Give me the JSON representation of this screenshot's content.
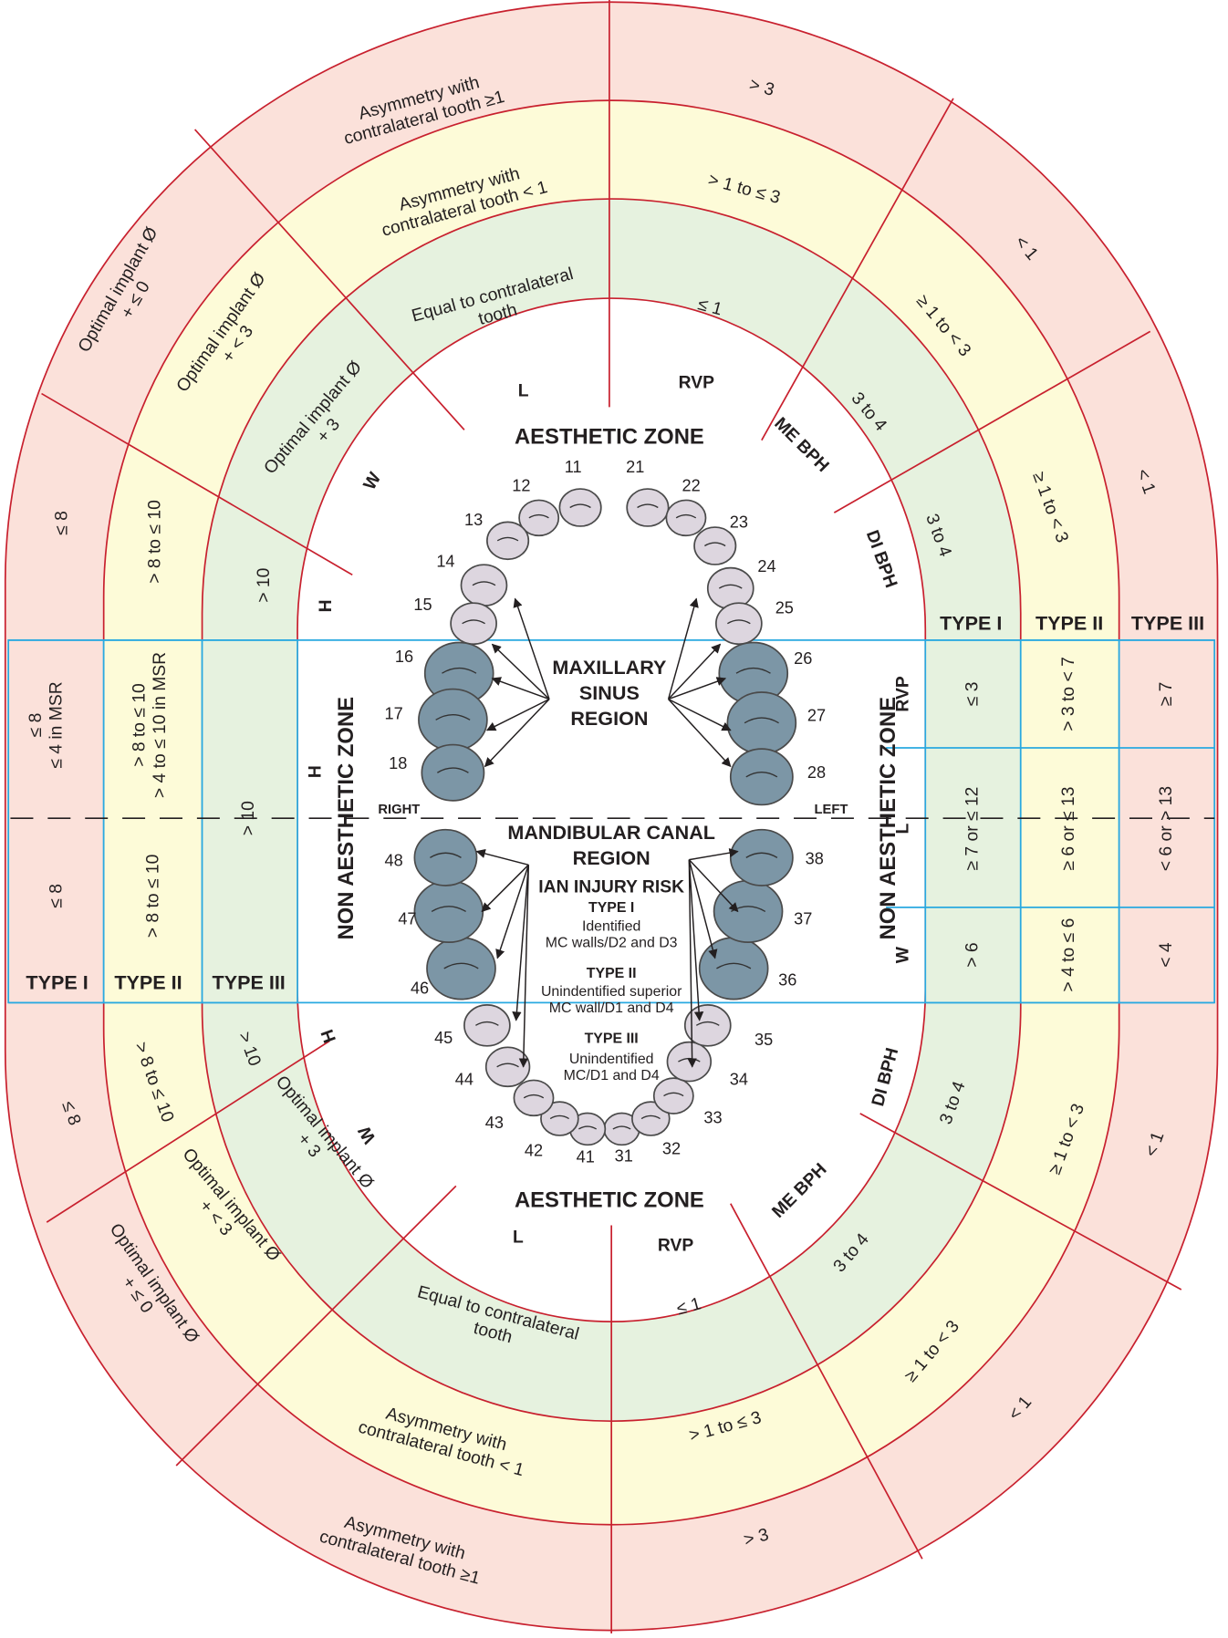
{
  "zones": {
    "aesthetic_top": "AESTHETIC ZONE",
    "aesthetic_bottom": "AESTHETIC ZONE",
    "non_aesthetic_left": "NON AESTHETIC ZONE",
    "non_aesthetic_right": "NON AESTHETIC ZONE"
  },
  "upper": {
    "rvp": {
      "outer": "> 3",
      "middle": "> 1 to ≤ 3",
      "inner": "≤ 1"
    },
    "l": {
      "outer": [
        "Asymmetry with",
        "contralateral tooth ≥1"
      ],
      "middle": [
        "Asymmetry with",
        "contralateral tooth < 1"
      ],
      "inner": [
        "Equal to contralateral",
        "tooth"
      ]
    },
    "w": {
      "outer": [
        "Optimal implant Ø",
        "+ ≤ 0"
      ],
      "middle": [
        "Optimal implant Ø",
        "+ < 3"
      ],
      "inner": [
        "Optimal implant Ø",
        "+ 3"
      ]
    },
    "h": {
      "outer": "≤ 8",
      "middle": "> 8 to ≤ 10",
      "inner": "> 10"
    },
    "me_bph": {
      "outer": "< 1",
      "middle": "≥ 1 to < 3",
      "inner": "3 to 4"
    },
    "di_bph": {
      "outer": "< 1",
      "middle": "≥ 1 to < 3",
      "inner": "3 to 4"
    }
  },
  "lower": {
    "rvp": {
      "outer": "> 3",
      "middle": "> 1 to ≤ 3",
      "inner": "≤ 1"
    },
    "l": {
      "outer": [
        "Asymmetry with",
        "contralateral tooth ≥1"
      ],
      "middle": [
        "Asymmetry with",
        "contralateral tooth < 1"
      ],
      "inner": [
        "Equal to contralateral",
        "tooth"
      ]
    },
    "w": {
      "outer": [
        "Optimal implant Ø",
        "+ ≤ 0"
      ],
      "middle": [
        "Optimal implant Ø",
        "+ < 3"
      ],
      "inner": [
        "Optimal implant Ø",
        "+ 3"
      ]
    },
    "h": {
      "outer": "≤ 8",
      "middle": "> 8 to ≤ 10",
      "inner": "> 10"
    },
    "me_bph": {
      "outer": "< 1",
      "middle": "≥ 1 to < 3",
      "inner": "3 to 4"
    },
    "di_bph": {
      "outer": "< 1",
      "middle": "≥ 1 to < 3",
      "inner": "3 to 4"
    }
  },
  "inner_labels": {
    "upper": {
      "l": "L",
      "rvp": "RVP",
      "me_bph": "ME BPH",
      "w": "W",
      "di_bph": "DI BPH",
      "h": "H"
    },
    "lower": {
      "l": "L",
      "rvp": "RVP",
      "me_bph": "ME BPH",
      "w": "W",
      "di_bph": "DI BPH",
      "h": "H"
    },
    "left_h": "H"
  },
  "right_table": {
    "types": [
      "TYPE I",
      "TYPE II",
      "TYPE III"
    ],
    "rows": [
      {
        "label": "RVP",
        "cells": [
          "≤ 3",
          "> 3 to < 7",
          "≥ 7"
        ]
      },
      {
        "label": "L",
        "cells": [
          "≥ 7 or ≤ 12",
          "≥ 6 or  ≤ 13",
          "< 6 or > 13"
        ]
      },
      {
        "label": "W",
        "cells": [
          "> 6",
          "> 4 to ≤ 6",
          "< 4"
        ]
      }
    ]
  },
  "left_table": {
    "types": [
      "TYPE I",
      "TYPE II",
      "TYPE III"
    ],
    "upper": [
      [
        "≤ 8",
        "≤ 4 in MSR"
      ],
      [
        "> 8 to ≤ 10",
        "> 4 to ≤ 10 in MSR"
      ]
    ],
    "lower": [
      "≤ 8",
      "> 8 to ≤ 10"
    ],
    "middle": "> 10"
  },
  "center": {
    "maxillary_sinus": [
      "MAXILLARY",
      "SINUS",
      "REGION"
    ],
    "mandibular_canal": [
      "MANDIBULAR CANAL",
      "REGION"
    ],
    "ian": "IAN INJURY RISK",
    "risk": [
      {
        "type": "TYPE I",
        "text": [
          "Identified",
          "MC walls/D2 and D3"
        ]
      },
      {
        "type": "TYPE II",
        "text": [
          "Unindentified superior",
          "MC wall/D1 and D4"
        ]
      },
      {
        "type": "TYPE III",
        "text": [
          "Unindentified",
          "MC/D1 and D4"
        ]
      }
    ],
    "right": "RIGHT",
    "left": "LEFT"
  },
  "teeth": [
    "11",
    "12",
    "13",
    "14",
    "15",
    "16",
    "17",
    "18",
    "21",
    "22",
    "23",
    "24",
    "25",
    "26",
    "27",
    "28",
    "31",
    "32",
    "33",
    "34",
    "35",
    "36",
    "37",
    "38",
    "41",
    "42",
    "43",
    "44",
    "45",
    "46",
    "47",
    "48"
  ]
}
